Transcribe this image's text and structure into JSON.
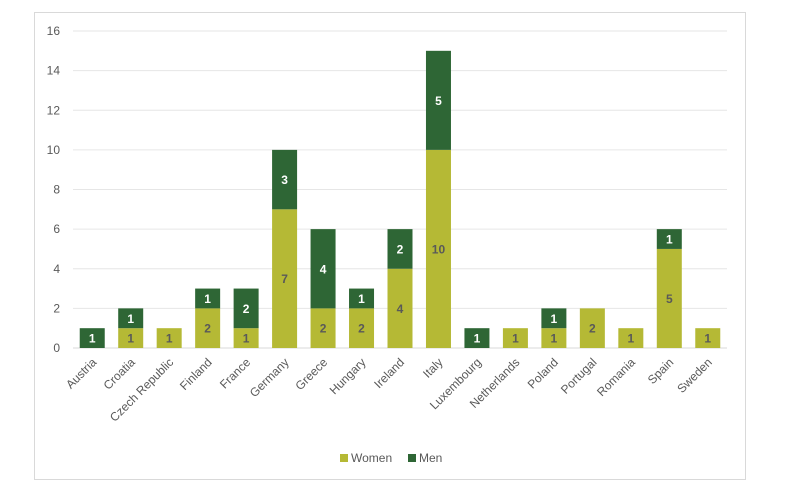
{
  "chart_data": {
    "type": "bar",
    "stacked": true,
    "categories": [
      "Austria",
      "Croatia",
      "Czech Republic",
      "Finland",
      "France",
      "Germany",
      "Greece",
      "Hungary",
      "Ireland",
      "Italy",
      "Luxembourg",
      "Netherlands",
      "Poland",
      "Portugal",
      "Romania",
      "Spain",
      "Sweden"
    ],
    "series": [
      {
        "name": "Women",
        "color": "#b5b935",
        "label_color": "#595959",
        "values": [
          0,
          1,
          1,
          2,
          1,
          7,
          2,
          2,
          4,
          10,
          0,
          1,
          1,
          2,
          1,
          5,
          1
        ]
      },
      {
        "name": "Men",
        "color": "#2e6635",
        "label_color": "#ffffff",
        "values": [
          1,
          1,
          0,
          1,
          2,
          3,
          4,
          1,
          2,
          5,
          1,
          0,
          1,
          0,
          0,
          1,
          0
        ]
      }
    ],
    "title": "",
    "xlabel": "",
    "ylabel": "",
    "ylim": [
      0,
      16
    ],
    "yticks": [
      0,
      2,
      4,
      6,
      8,
      10,
      12,
      14,
      16
    ],
    "grid": true,
    "legend_position": "bottom"
  }
}
